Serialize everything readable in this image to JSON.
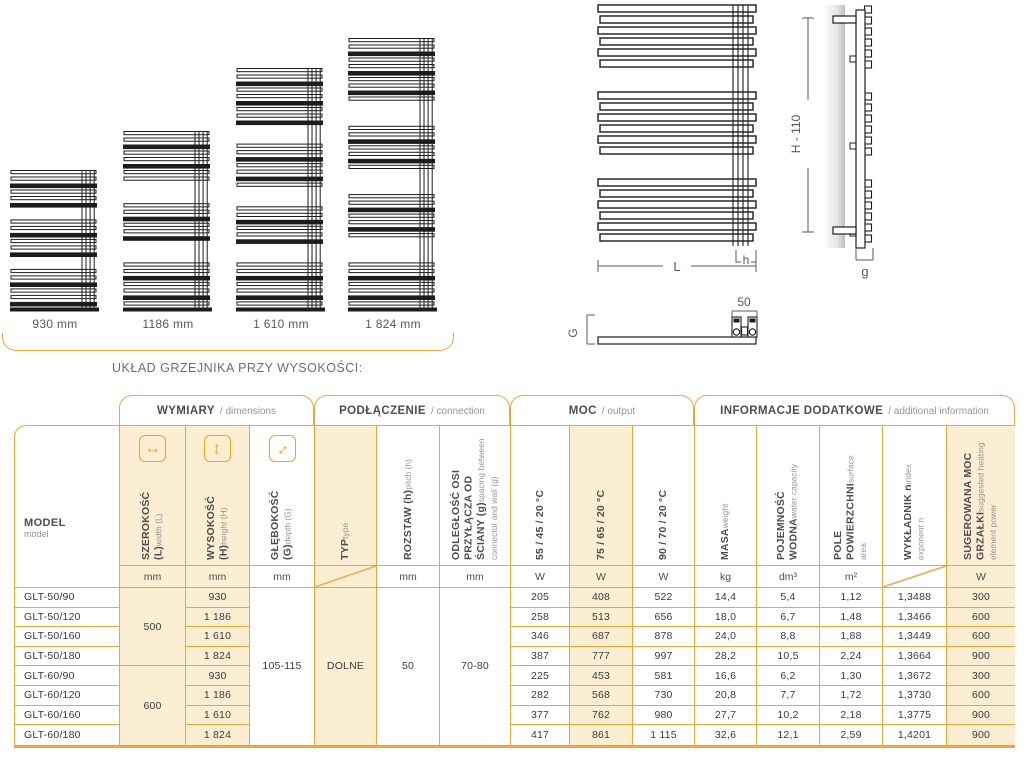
{
  "colors": {
    "accent_orange": "#F1A33C",
    "highlight_beige": "#FBEED3",
    "drawing_ink": "#1d1d1b"
  },
  "diagram": {
    "caption": "UKŁAD GRZEJNIKA PRZY WYSOKOŚCI:",
    "height_variants": [
      {
        "label": "930 mm"
      },
      {
        "label": "1186 mm"
      },
      {
        "label": "1 610 mm"
      },
      {
        "label": "1 824 mm"
      }
    ],
    "dimensions": {
      "length": "L",
      "pitch": "h",
      "height": "H - 110",
      "wall_distance": "g",
      "valve_spacing": "50",
      "depth": "G"
    }
  },
  "table": {
    "groups": [
      {
        "title": "WYMIARY",
        "subtitle": "/ dimensions"
      },
      {
        "title": "PODŁĄCZENIE",
        "subtitle": "/ connection"
      },
      {
        "title": "MOC",
        "subtitle": "/ output"
      },
      {
        "title": "INFORMACJE DODATKOWE",
        "subtitle": "/ additional information"
      }
    ],
    "columns": [
      {
        "label": "MODEL",
        "sub": "model",
        "unit": ""
      },
      {
        "label": "SZEROKOŚĆ (L)",
        "sub": "width (L)",
        "unit": "mm",
        "icon": "width-arrow-icon"
      },
      {
        "label": "WYSOKOŚĆ (H)",
        "sub": "height (H)",
        "unit": "mm",
        "icon": "height-arrow-icon"
      },
      {
        "label": "GŁĘBOKOŚĆ (G)",
        "sub": "depth (G)",
        "unit": "mm",
        "icon": "depth-arrow-icon"
      },
      {
        "label": "TYP",
        "sub": "type",
        "unit": ""
      },
      {
        "label": "ROZSTAW (h)",
        "sub": "pitch (h)",
        "unit": "mm"
      },
      {
        "label": "ODLEGŁOŚĆ OSI PRZYŁĄCZA OD ŚCIANY (g)",
        "sub": "spacing between connector and wall  (g)",
        "unit": "mm"
      },
      {
        "label": "55 / 45 / 20 °C",
        "sub": "",
        "unit": "W"
      },
      {
        "label": "75 / 65 / 20 °C",
        "sub": "",
        "unit": "W"
      },
      {
        "label": "90 / 70 / 20 °C",
        "sub": "",
        "unit": "W"
      },
      {
        "label": "MASA",
        "sub": "weight",
        "unit": "kg"
      },
      {
        "label": "POJEMNOŚĆ WODNA",
        "sub": "water capacity",
        "unit": "dm³"
      },
      {
        "label": "POLE POWIERZCHNI",
        "sub": "surface area",
        "unit": "m²"
      },
      {
        "label": "WYKŁADNIK n",
        "sub": "index exponent n",
        "unit": ""
      },
      {
        "label": "SUGEROWANA MOC GRZAŁKI",
        "sub": "suggested heating element power",
        "unit": "W"
      }
    ],
    "merged": {
      "width_top": "500",
      "width_bottom": "600",
      "depth": "105-115",
      "type": "DOLNE",
      "pitch": "50",
      "wall_distance": "70-80"
    },
    "rows": [
      {
        "model": "GLT-50/90",
        "height": "930",
        "p55": "205",
        "p75": "408",
        "p90": "522",
        "mass": "14,4",
        "capacity": "5,4",
        "area": "1,12",
        "exponent": "1,3488",
        "heater": "300"
      },
      {
        "model": "GLT-50/120",
        "height": "1 186",
        "p55": "258",
        "p75": "513",
        "p90": "656",
        "mass": "18,0",
        "capacity": "6,7",
        "area": "1,48",
        "exponent": "1,3466",
        "heater": "600"
      },
      {
        "model": "GLT-50/160",
        "height": "1 610",
        "p55": "346",
        "p75": "687",
        "p90": "878",
        "mass": "24,0",
        "capacity": "8,8",
        "area": "1,88",
        "exponent": "1,3449",
        "heater": "600"
      },
      {
        "model": "GLT-50/180",
        "height": "1 824",
        "p55": "387",
        "p75": "777",
        "p90": "997",
        "mass": "28,2",
        "capacity": "10,5",
        "area": "2,24",
        "exponent": "1,3664",
        "heater": "900"
      },
      {
        "model": "GLT-60/90",
        "height": "930",
        "p55": "225",
        "p75": "453",
        "p90": "581",
        "mass": "16,6",
        "capacity": "6,2",
        "area": "1,30",
        "exponent": "1,3672",
        "heater": "300"
      },
      {
        "model": "GLT-60/120",
        "height": "1 186",
        "p55": "282",
        "p75": "568",
        "p90": "730",
        "mass": "20,8",
        "capacity": "7,7",
        "area": "1,72",
        "exponent": "1,3730",
        "heater": "600"
      },
      {
        "model": "GLT-60/160",
        "height": "1 610",
        "p55": "377",
        "p75": "762",
        "p90": "980",
        "mass": "27,7",
        "capacity": "10,2",
        "area": "2,18",
        "exponent": "1,3775",
        "heater": "900"
      },
      {
        "model": "GLT-60/180",
        "height": "1 824",
        "p55": "417",
        "p75": "861",
        "p90": "1 115",
        "mass": "32,6",
        "capacity": "12,1",
        "area": "2,59",
        "exponent": "1,4201",
        "heater": "900"
      }
    ]
  }
}
